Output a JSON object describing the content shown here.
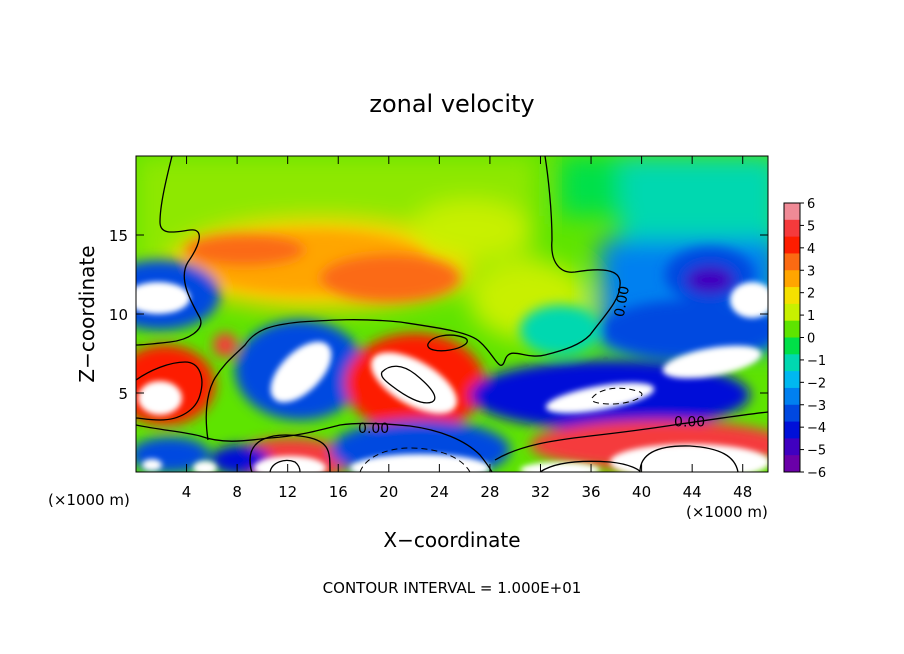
{
  "chart_data": {
    "type": "heatmap",
    "title": "zonal velocity",
    "xlabel": "X−coordinate",
    "ylabel": "Z−coordinate",
    "x_unit_left": "(×1000 m)",
    "x_unit_right": "(×1000 m)",
    "footer": "CONTOUR INTERVAL = 1.000E+01",
    "xlim": [
      0,
      50
    ],
    "ylim": [
      0,
      20
    ],
    "x_ticks": [
      4,
      8,
      12,
      16,
      20,
      24,
      28,
      32,
      36,
      40,
      44,
      48
    ],
    "y_ticks": [
      5,
      10,
      15
    ],
    "colorbar": {
      "ticks": [
        "6",
        "5",
        "4",
        "3",
        "2",
        "1",
        "0",
        "−1",
        "−2",
        "−3",
        "−4",
        "−5",
        "−6"
      ],
      "values": [
        6,
        5,
        4,
        3,
        2,
        1,
        0,
        -1,
        -2,
        -3,
        -4,
        -5,
        -6
      ],
      "colors": [
        "#f08a96",
        "#f53a3c",
        "#fd1d00",
        "#fb6a12",
        "#ffa500",
        "#f5e000",
        "#c8f000",
        "#5ee400",
        "#00e048",
        "#00d8b0",
        "#00b8f0",
        "#0080f0",
        "#0048e0",
        "#0010d8",
        "#4000c0",
        "#6a00a8"
      ]
    },
    "contour_labels": [
      {
        "text": "0.00",
        "x": 18.8,
        "y": 2.8
      },
      {
        "text": "0.00",
        "x": 43.8,
        "y": 3.2
      },
      {
        "text": "0.00",
        "x": 38.4,
        "y": 10.8,
        "rotate": -80
      }
    ]
  }
}
